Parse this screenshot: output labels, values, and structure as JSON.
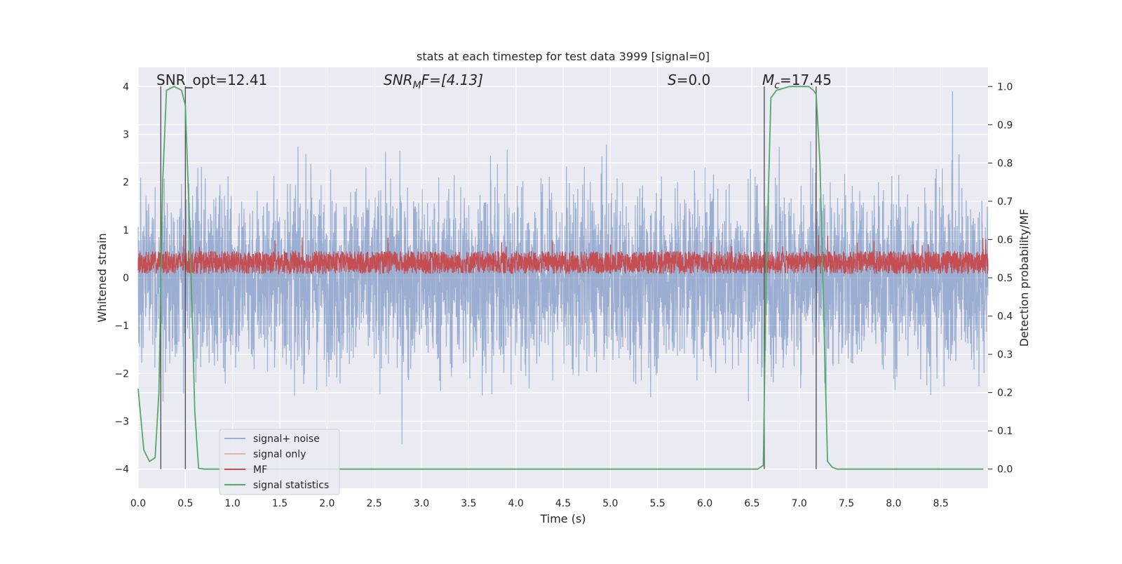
{
  "chart_data": {
    "type": "line",
    "title": "stats at each timestep for test data 3999 [signal=0]",
    "xlabel": "Time (s)",
    "ylabel": "Whitened strain",
    "y2label": "Detection probability/MF",
    "xlim": [
      0,
      9
    ],
    "ylim": [
      -4.4,
      4.4
    ],
    "y2lim": [
      -0.05,
      1.05
    ],
    "xticks": [
      "0.0",
      "0.5",
      "1.0",
      "1.5",
      "2.0",
      "2.5",
      "3.0",
      "3.5",
      "4.0",
      "4.5",
      "5.0",
      "5.5",
      "6.0",
      "6.5",
      "7.0",
      "7.5",
      "8.0",
      "8.5"
    ],
    "yticks": [
      4,
      3,
      2,
      1,
      0,
      -1,
      -2,
      -3,
      -4
    ],
    "ytick_labels": [
      "4",
      "3",
      "2",
      "1",
      "0",
      "−1",
      "−2",
      "−3",
      "−4"
    ],
    "y2ticks": [
      "1.0",
      "0.9",
      "0.8",
      "0.7",
      "0.6",
      "0.5",
      "0.4",
      "0.3",
      "0.2",
      "0.1",
      "0.0"
    ],
    "grid": true,
    "legend_placement": "lower-left",
    "annotations": {
      "snr_opt": "SNR_opt=12.41",
      "snr_mf_main": "SNR",
      "snr_mf_sub": "M",
      "snr_mf_tail": "F=[4.13]",
      "s_main": "S",
      "s_tail": "=0.0",
      "mc_main": "M",
      "mc_sub": "c",
      "mc_tail": "=17.45"
    },
    "vertical_lines_x": [
      0.24,
      0.5,
      6.63,
      7.18
    ],
    "series": [
      {
        "name": "signal+ noise",
        "color": "#4c72b0",
        "opacity": 0.5,
        "description": "whitened noise, amplitude roughly ±2.5 with spikes to about ±3.8"
      },
      {
        "name": "signal only",
        "color": "#dd8452",
        "opacity": 0.5,
        "values": []
      },
      {
        "name": "MF",
        "color": "#c44e52",
        "range_y2": [
          0.51,
          0.57
        ]
      },
      {
        "name": "signal statistics",
        "color": "#55a868",
        "axis": "y2",
        "x": [
          0.0,
          0.06,
          0.12,
          0.18,
          0.22,
          0.26,
          0.3,
          0.38,
          0.46,
          0.5,
          0.55,
          0.6,
          0.64,
          0.7,
          1.0,
          2.0,
          3.0,
          4.0,
          5.0,
          6.0,
          6.56,
          6.62,
          6.65,
          6.7,
          6.76,
          6.9,
          7.1,
          7.15,
          7.18,
          7.22,
          7.26,
          7.3,
          7.35,
          7.4,
          8.0,
          8.95
        ],
        "values": [
          0.21,
          0.05,
          0.02,
          0.03,
          0.2,
          0.75,
          0.99,
          1.0,
          0.99,
          0.95,
          0.6,
          0.15,
          0.002,
          0.0,
          0.0,
          0.0,
          0.0,
          0.0,
          0.0,
          0.0,
          0.0,
          0.01,
          0.5,
          0.97,
          0.99,
          1.0,
          1.0,
          0.99,
          0.98,
          0.8,
          0.4,
          0.02,
          0.005,
          0.0,
          0.0,
          0.0
        ]
      }
    ]
  }
}
